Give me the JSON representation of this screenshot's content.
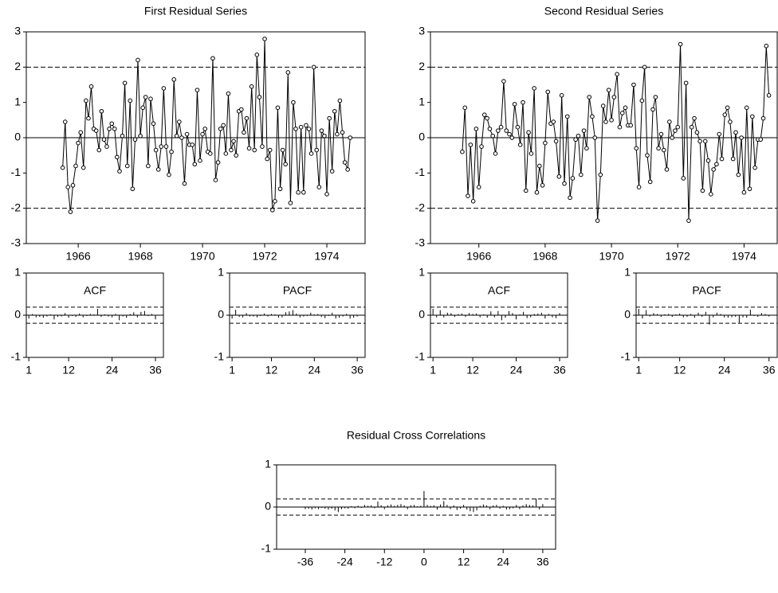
{
  "chart_data": [
    {
      "type": "line",
      "title": "First Residual Series",
      "x": [
        1965.5,
        1965.58,
        1965.67,
        1965.75,
        1965.83,
        1965.92,
        1966,
        1966.08,
        1966.17,
        1966.25,
        1966.33,
        1966.42,
        1966.5,
        1966.58,
        1966.67,
        1966.75,
        1966.83,
        1966.92,
        1967,
        1967.08,
        1967.17,
        1967.25,
        1967.33,
        1967.42,
        1967.5,
        1967.58,
        1967.67,
        1967.75,
        1967.83,
        1967.92,
        1968,
        1968.08,
        1968.17,
        1968.25,
        1968.33,
        1968.42,
        1968.5,
        1968.58,
        1968.67,
        1968.75,
        1968.83,
        1968.92,
        1969,
        1969.08,
        1969.17,
        1969.25,
        1969.33,
        1969.42,
        1969.5,
        1969.58,
        1969.67,
        1969.75,
        1969.83,
        1969.92,
        1970,
        1970.08,
        1970.17,
        1970.25,
        1970.33,
        1970.42,
        1970.5,
        1970.58,
        1970.67,
        1970.75,
        1970.83,
        1970.92,
        1971,
        1971.08,
        1971.17,
        1971.25,
        1971.33,
        1971.42,
        1971.5,
        1971.58,
        1971.67,
        1971.75,
        1971.83,
        1971.92,
        1972,
        1972.08,
        1972.17,
        1972.25,
        1972.33,
        1972.42,
        1972.5,
        1972.58,
        1972.67,
        1972.75,
        1972.83,
        1972.92,
        1973,
        1973.08,
        1973.17,
        1973.25,
        1973.33,
        1973.42,
        1973.5,
        1973.58,
        1973.67,
        1973.75,
        1973.83,
        1973.92,
        1974,
        1974.08,
        1974.17,
        1974.25,
        1974.33,
        1974.42,
        1974.5,
        1974.58,
        1974.67,
        1974.75
      ],
      "series": [
        {
          "color": "#000000",
          "marker": "circle",
          "values": [
            -0.85,
            0.45,
            -1.4,
            -2.1,
            -1.35,
            -0.8,
            -0.15,
            0.15,
            -0.85,
            1.05,
            0.55,
            1.45,
            0.25,
            0.2,
            -0.35,
            0.75,
            -0.05,
            -0.25,
            0.25,
            0.4,
            0.25,
            -0.55,
            -0.95,
            0.05,
            1.55,
            -0.8,
            1.05,
            -1.45,
            -0.05,
            2.2,
            0.05,
            0.85,
            1.15,
            -0.8,
            1.1,
            0.4,
            -0.35,
            -0.9,
            -0.25,
            1.4,
            -0.25,
            -1.05,
            -0.4,
            1.65,
            0.05,
            0.45,
            0.0,
            -1.3,
            0.1,
            -0.2,
            -0.2,
            -0.75,
            1.35,
            -0.65,
            0.1,
            0.25,
            -0.4,
            -0.45,
            2.25,
            -1.2,
            -0.7,
            0.25,
            0.35,
            -0.45,
            1.25,
            -0.35,
            -0.1,
            -0.5,
            0.75,
            0.8,
            0.15,
            0.55,
            -0.3,
            1.45,
            -0.35,
            2.35,
            1.15,
            -0.25,
            2.8,
            -0.6,
            -0.35,
            -2.05,
            -1.8,
            0.85,
            -1.45,
            -0.35,
            -0.75,
            1.85,
            -1.85,
            1.0,
            0.25,
            -1.55,
            0.3,
            -1.55,
            0.35,
            0.25,
            -0.45,
            2.0,
            -0.35,
            -1.4,
            0.2,
            0.05,
            -1.6,
            0.55,
            -0.95,
            0.75,
            0.1,
            1.05,
            0.15,
            -0.7,
            -0.9,
            0.0
          ]
        }
      ],
      "xlim": [
        1964.33,
        1975.23
      ],
      "xticks": [
        1966,
        1968,
        1970,
        1972,
        1974
      ],
      "ylim": [
        -3,
        3
      ],
      "yticks": [
        -3,
        -2,
        -1,
        0,
        1,
        2,
        3
      ],
      "reference_lines": [
        -2,
        2
      ]
    },
    {
      "type": "line",
      "title": "Second Residual Series",
      "x": [
        1965.5,
        1965.58,
        1965.67,
        1965.75,
        1965.83,
        1965.92,
        1966,
        1966.08,
        1966.17,
        1966.25,
        1966.33,
        1966.42,
        1966.5,
        1966.58,
        1966.67,
        1966.75,
        1966.83,
        1966.92,
        1967,
        1967.08,
        1967.17,
        1967.25,
        1967.33,
        1967.42,
        1967.5,
        1967.58,
        1967.67,
        1967.75,
        1967.83,
        1967.92,
        1968,
        1968.08,
        1968.17,
        1968.25,
        1968.33,
        1968.42,
        1968.5,
        1968.58,
        1968.67,
        1968.75,
        1968.83,
        1968.92,
        1969,
        1969.08,
        1969.17,
        1969.25,
        1969.33,
        1969.42,
        1969.5,
        1969.58,
        1969.67,
        1969.75,
        1969.83,
        1969.92,
        1970,
        1970.08,
        1970.17,
        1970.25,
        1970.33,
        1970.42,
        1970.5,
        1970.58,
        1970.67,
        1970.75,
        1970.83,
        1970.92,
        1971,
        1971.08,
        1971.17,
        1971.25,
        1971.33,
        1971.42,
        1971.5,
        1971.58,
        1971.67,
        1971.75,
        1971.83,
        1971.92,
        1972,
        1972.08,
        1972.17,
        1972.25,
        1972.33,
        1972.42,
        1972.5,
        1972.58,
        1972.67,
        1972.75,
        1972.83,
        1972.92,
        1973,
        1973.08,
        1973.17,
        1973.25,
        1973.33,
        1973.42,
        1973.5,
        1973.58,
        1973.67,
        1973.75,
        1973.83,
        1973.92,
        1974,
        1974.08,
        1974.17,
        1974.25,
        1974.33,
        1974.42,
        1974.5,
        1974.58,
        1974.67,
        1974.75
      ],
      "series": [
        {
          "color": "#000000",
          "marker": "circle",
          "values": [
            -0.4,
            0.85,
            -1.65,
            -0.2,
            -1.8,
            0.25,
            -1.4,
            -0.25,
            0.65,
            0.55,
            0.25,
            0.05,
            -0.45,
            0.2,
            0.3,
            1.6,
            0.2,
            0.1,
            0.0,
            0.95,
            0.3,
            -0.2,
            1.0,
            -1.5,
            0.15,
            -0.45,
            1.4,
            -1.55,
            -0.8,
            -1.35,
            -0.15,
            1.3,
            0.4,
            0.45,
            -0.1,
            -1.1,
            1.2,
            -1.3,
            0.6,
            -1.7,
            -1.15,
            -0.05,
            0.05,
            -1.05,
            0.2,
            -0.3,
            1.15,
            0.6,
            0.0,
            -2.35,
            -1.05,
            0.9,
            0.45,
            1.35,
            0.5,
            1.15,
            1.8,
            0.3,
            0.7,
            0.85,
            0.35,
            0.35,
            1.5,
            -0.3,
            -1.4,
            1.05,
            2.0,
            -0.5,
            -1.25,
            0.8,
            1.15,
            -0.3,
            0.1,
            -0.35,
            -0.9,
            0.45,
            0.0,
            0.2,
            0.3,
            2.65,
            -1.15,
            1.55,
            -2.35,
            0.3,
            0.55,
            0.15,
            -0.1,
            -1.5,
            -0.1,
            -0.65,
            -1.6,
            -0.9,
            -0.75,
            0.1,
            -0.6,
            0.65,
            0.85,
            0.45,
            -0.6,
            0.15,
            -1.05,
            0.0,
            -1.55,
            0.85,
            -1.45,
            0.6,
            -0.85,
            -0.05,
            -0.05,
            0.55,
            2.6,
            1.2
          ]
        }
      ],
      "xlim": [
        1964.54,
        1975.0
      ],
      "xticks": [
        1966,
        1968,
        1970,
        1972,
        1974
      ],
      "ylim": [
        -3,
        3
      ],
      "yticks": [
        -3,
        -2,
        -1,
        0,
        1,
        2,
        3
      ],
      "reference_lines": [
        -2,
        2
      ]
    },
    {
      "type": "correlogram",
      "title": "ACF",
      "x": [
        1,
        2,
        3,
        4,
        5,
        6,
        7,
        8,
        9,
        10,
        11,
        12,
        13,
        14,
        15,
        16,
        17,
        18,
        19,
        20,
        21,
        22,
        23,
        24,
        25,
        26,
        27,
        28,
        29,
        30,
        31,
        32,
        33,
        34,
        35,
        36
      ],
      "values": [
        -0.08,
        0.03,
        -0.05,
        -0.04,
        -0.06,
        -0.03,
        0.02,
        -0.1,
        -0.04,
        -0.03,
        0.05,
        -0.06,
        -0.02,
        -0.04,
        0.04,
        -0.05,
        -0.02,
        0.03,
        0.02,
        0.15,
        -0.04,
        0.02,
        -0.03,
        -0.05,
        0.03,
        -0.12,
        -0.03,
        -0.06,
        0.03,
        0.07,
        -0.05,
        0.08,
        0.1,
        -0.02,
        0.03,
        -0.1
      ],
      "color": "#000000",
      "xlim": [
        0.3,
        38.2
      ],
      "xticks": [
        1,
        12,
        24,
        36
      ],
      "ylim": [
        -1,
        1
      ],
      "yticks": [
        -1,
        0,
        1
      ],
      "confidence_bounds": [
        -0.19,
        0.19
      ]
    },
    {
      "type": "correlogram",
      "title": "PACF",
      "x": [
        1,
        2,
        3,
        4,
        5,
        6,
        7,
        8,
        9,
        10,
        11,
        12,
        13,
        14,
        15,
        16,
        17,
        18,
        19,
        20,
        21,
        22,
        23,
        24,
        25,
        26,
        27,
        28,
        29,
        30,
        31,
        32,
        33,
        34,
        35,
        36
      ],
      "values": [
        -0.08,
        0.13,
        -0.04,
        -0.05,
        0.05,
        -0.03,
        -0.03,
        -0.05,
        -0.02,
        0.04,
        -0.03,
        0.03,
        0.02,
        -0.06,
        -0.05,
        0.07,
        0.09,
        0.12,
        0.04,
        -0.05,
        -0.03,
        -0.02,
        0.06,
        0.02,
        0.03,
        -0.04,
        -0.07,
        -0.02,
        0.06,
        -0.08,
        -0.06,
        -0.03,
        0.03,
        -0.08,
        -0.06,
        -0.03
      ],
      "color": "#000000",
      "xlim": [
        0.3,
        38.2
      ],
      "xticks": [
        1,
        12,
        24,
        36
      ],
      "ylim": [
        -1,
        1
      ],
      "yticks": [
        -1,
        0,
        1
      ],
      "confidence_bounds": [
        -0.19,
        0.19
      ]
    },
    {
      "type": "correlogram",
      "title": "ACF",
      "x": [
        1,
        2,
        3,
        4,
        5,
        6,
        7,
        8,
        9,
        10,
        11,
        12,
        13,
        14,
        15,
        16,
        17,
        18,
        19,
        20,
        21,
        22,
        23,
        24,
        25,
        26,
        27,
        28,
        29,
        30,
        31,
        32,
        33,
        34,
        35,
        36
      ],
      "values": [
        0.15,
        -0.05,
        0.12,
        -0.05,
        0.06,
        0.05,
        -0.04,
        0.03,
        0.04,
        -0.04,
        0.05,
        0.03,
        0.04,
        -0.05,
        0.02,
        -0.06,
        0.09,
        -0.05,
        0.1,
        -0.12,
        -0.06,
        0.1,
        0.05,
        -0.1,
        0.02,
        0.08,
        -0.07,
        -0.05,
        0.03,
        0.04,
        0.06,
        -0.08,
        0.03,
        -0.05,
        -0.07,
        0.05
      ],
      "color": "#000000",
      "xlim": [
        0.3,
        38.2
      ],
      "xticks": [
        1,
        12,
        24,
        36
      ],
      "ylim": [
        -1,
        1
      ],
      "yticks": [
        -1,
        0,
        1
      ],
      "confidence_bounds": [
        -0.19,
        0.19
      ]
    },
    {
      "type": "correlogram",
      "title": "PACF",
      "x": [
        1,
        2,
        3,
        4,
        5,
        6,
        7,
        8,
        9,
        10,
        11,
        12,
        13,
        14,
        15,
        16,
        17,
        18,
        19,
        20,
        21,
        22,
        23,
        24,
        25,
        26,
        27,
        28,
        29,
        30,
        31,
        32,
        33,
        34,
        35,
        36
      ],
      "values": [
        0.15,
        -0.08,
        0.12,
        -0.03,
        0.05,
        0.03,
        -0.04,
        0.02,
        0.03,
        -0.04,
        0.02,
        0.04,
        -0.05,
        -0.04,
        0.03,
        -0.06,
        0.06,
        -0.04,
        0.08,
        -0.22,
        -0.05,
        0.06,
        0.03,
        -0.05,
        -0.06,
        -0.05,
        -0.04,
        -0.18,
        -0.05,
        -0.06,
        0.13,
        -0.02,
        -0.04,
        0.05,
        0.03,
        -0.03
      ],
      "color": "#000000",
      "xlim": [
        0.3,
        38.2
      ],
      "xticks": [
        1,
        12,
        24,
        36
      ],
      "ylim": [
        -1,
        1
      ],
      "yticks": [
        -1,
        0,
        1
      ],
      "confidence_bounds": [
        -0.19,
        0.19
      ]
    },
    {
      "type": "correlogram",
      "title": "Residual Cross Correlations",
      "x": [
        -36,
        -35,
        -34,
        -33,
        -32,
        -31,
        -30,
        -29,
        -28,
        -27,
        -26,
        -25,
        -24,
        -23,
        -22,
        -21,
        -20,
        -19,
        -18,
        -17,
        -16,
        -15,
        -14,
        -13,
        -12,
        -11,
        -10,
        -9,
        -8,
        -7,
        -6,
        -5,
        -4,
        -3,
        -2,
        -1,
        0,
        1,
        2,
        3,
        4,
        5,
        6,
        7,
        8,
        9,
        10,
        11,
        12,
        13,
        14,
        15,
        16,
        17,
        18,
        19,
        20,
        21,
        22,
        23,
        24,
        25,
        26,
        27,
        28,
        29,
        30,
        31,
        32,
        33,
        34,
        35,
        36
      ],
      "values": [
        -0.05,
        -0.04,
        -0.06,
        -0.03,
        -0.05,
        -0.02,
        -0.04,
        -0.06,
        -0.04,
        -0.08,
        -0.12,
        -0.05,
        -0.03,
        -0.04,
        0.02,
        -0.03,
        0.03,
        -0.02,
        0.05,
        0.03,
        0.04,
        -0.03,
        0.13,
        0.04,
        -0.05,
        0.04,
        0.06,
        0.03,
        0.05,
        0.07,
        0.04,
        -0.05,
        0.04,
        0.05,
        0.02,
        0.03,
        0.38,
        0.05,
        0.03,
        0.04,
        -0.06,
        0.06,
        0.14,
        0.05,
        -0.05,
        0.04,
        -0.07,
        -0.04,
        0.05,
        -0.06,
        -0.1,
        -0.12,
        -0.08,
        0.03,
        0.06,
        0.04,
        -0.05,
        0.04,
        0.05,
        -0.04,
        0.03,
        -0.06,
        -0.05,
        -0.03,
        0.05,
        -0.05,
        0.04,
        0.07,
        0.05,
        0.04,
        0.2,
        -0.06,
        0.07
      ],
      "color": "#000000",
      "xlim": [
        -44.7,
        39.9
      ],
      "xticks": [
        -36,
        -24,
        -12,
        0,
        12,
        24,
        36
      ],
      "ylim": [
        -1,
        1
      ],
      "yticks": [
        -1,
        0,
        1
      ],
      "confidence_bounds": [
        -0.19,
        0.19
      ]
    }
  ]
}
